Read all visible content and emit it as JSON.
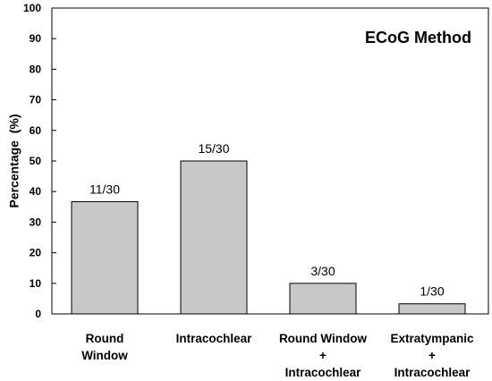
{
  "chart_data": {
    "type": "bar",
    "title": "ECoG Method",
    "ylabel": "Percentage  (%)",
    "xlabel": "",
    "ylim": [
      0,
      100
    ],
    "yticks": [
      0,
      10,
      20,
      30,
      40,
      50,
      60,
      70,
      80,
      90,
      100
    ],
    "categories": [
      [
        "Round",
        "Window"
      ],
      [
        "Intracochlear"
      ],
      [
        "Round Window",
        "+",
        "Intracochlear"
      ],
      [
        "Extratympanic",
        "+",
        "Intracochlear"
      ]
    ],
    "values": [
      36.7,
      50,
      10,
      3.3
    ],
    "data_labels": [
      "11/30",
      "15/30",
      "3/30",
      "1/30"
    ],
    "bar_color": "#c8c8c8",
    "grid": false,
    "legend": "none"
  }
}
